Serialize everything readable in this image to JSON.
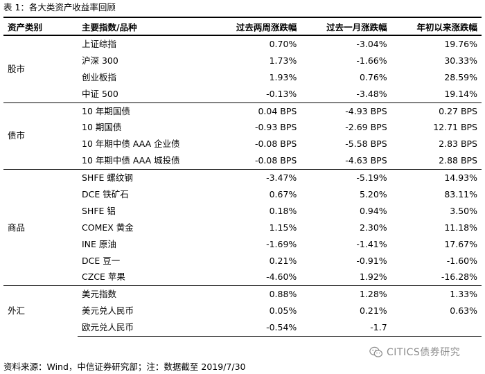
{
  "caption": "表 1：各大类资产收益率回顾",
  "table": {
    "headers": [
      "资产类别",
      "主要指数/品种",
      "过去两周涨跌幅",
      "过去一月涨跌幅",
      "年初以来涨跌幅"
    ],
    "groups": [
      {
        "category": "股市",
        "rows": [
          [
            "上证综指",
            "0.70%",
            "-3.04%",
            "19.76%"
          ],
          [
            "沪深 300",
            "1.73%",
            "-1.66%",
            "30.33%"
          ],
          [
            "创业板指",
            "1.93%",
            "0.76%",
            "28.59%"
          ],
          [
            "中证 500",
            "-0.13%",
            "-3.48%",
            "19.14%"
          ]
        ]
      },
      {
        "category": "债市",
        "rows": [
          [
            "10 年期国债",
            "0.04 BPS",
            "-4.93  BPS",
            "0.27  BPS"
          ],
          [
            "10 期国债",
            "-0.93  BPS",
            "-2.69  BPS",
            "12.71  BPS"
          ],
          [
            "10 年期中债 AAA 企业债",
            "-0.08  BPS",
            "-5.58  BPS",
            "2.83  BPS"
          ],
          [
            "10 年期中债 AAA 城投债",
            "-0.08  BPS",
            "-4.63  BPS",
            "2.88  BPS"
          ]
        ]
      },
      {
        "category": "商品",
        "rows": [
          [
            "SHFE 螺纹钢",
            "-3.47%",
            "-5.19%",
            "14.93%"
          ],
          [
            "DCE 铁矿石",
            "0.67%",
            "5.20%",
            "83.11%"
          ],
          [
            "SHFE 铝",
            "0.18%",
            "0.94%",
            "3.50%"
          ],
          [
            "COMEX 黄金",
            "1.15%",
            "2.30%",
            "11.18%"
          ],
          [
            "INE 原油",
            "-1.69%",
            "-1.41%",
            "17.67%"
          ],
          [
            "DCE 豆一",
            "0.21%",
            "-0.91%",
            "-1.60%"
          ],
          [
            "CZCE 苹果",
            "-4.60%",
            "1.92%",
            "-16.28%"
          ]
        ]
      },
      {
        "category": "外汇",
        "rows": [
          [
            "美元指数",
            "0.88%",
            "1.28%",
            "1.33%"
          ],
          [
            "美元兑人民币",
            "0.05%",
            "0.21%",
            "0.63%"
          ],
          [
            "欧元兑人民币",
            "-0.54%",
            "-1.7",
            ""
          ]
        ]
      }
    ]
  },
  "source": "资料来源：Wind，中信证券研究部；注：数据截至 2019/7/30",
  "watermark": {
    "text": "CITICS债券研究",
    "icon": "wechat-icon",
    "color": "#787878"
  }
}
